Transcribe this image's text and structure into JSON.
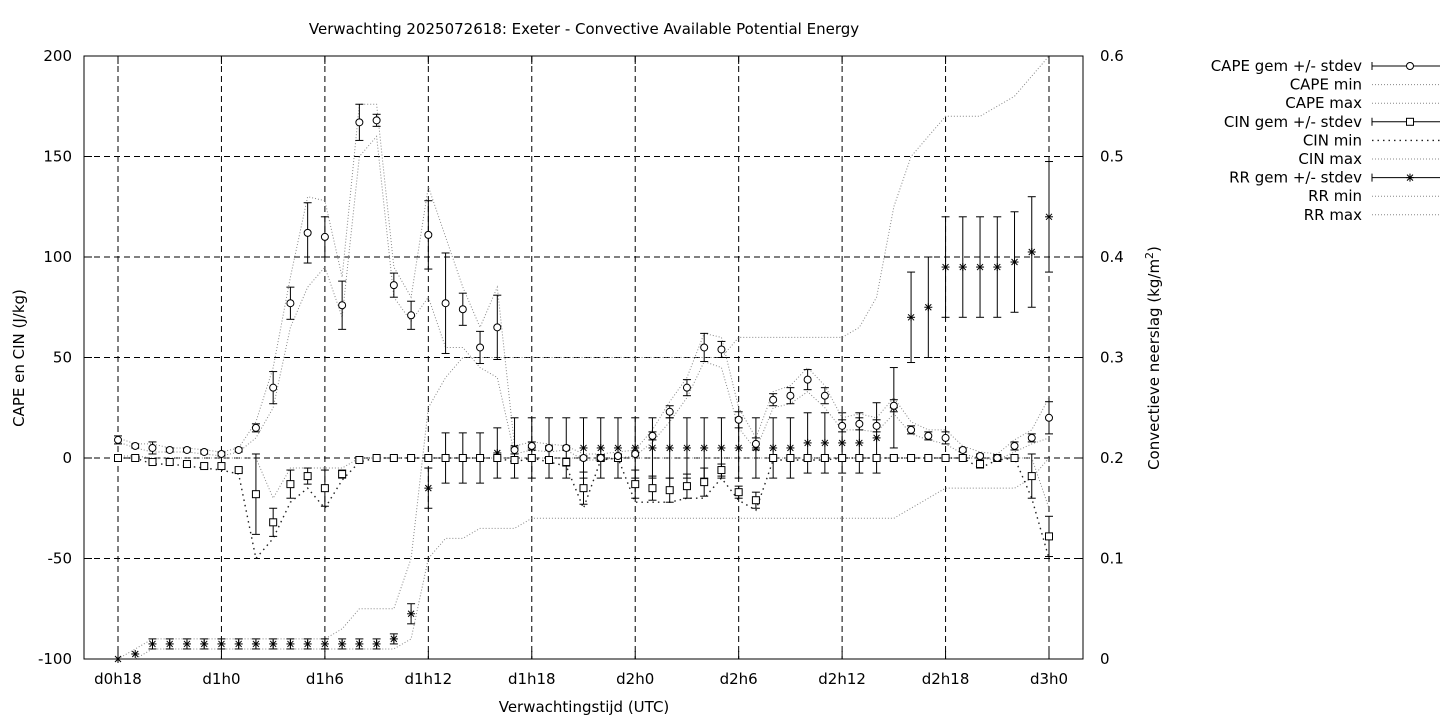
{
  "chart_data": {
    "type": "line",
    "title": "Verwachting 2025072618: Exeter - Convective Available Potential Energy",
    "xlabel": "Verwachtingstijd (UTC)",
    "ylabel": "CAPE en CIN (J/kg)",
    "y2label": "Convectieve neerslag (kg/m²)",
    "y2label_main": "Convectieve neerslag (kg/m",
    "y2label_sup": "2",
    "y2label_close": ")",
    "xlim": [
      0,
      54
    ],
    "ylim": [
      -100,
      200
    ],
    "y2lim": [
      0,
      0.6
    ],
    "grid": true,
    "legend_position": "outside-right",
    "x_ticks": [
      {
        "x": 0,
        "label": "d0h18"
      },
      {
        "x": 6,
        "label": "d1h0"
      },
      {
        "x": 12,
        "label": "d1h6"
      },
      {
        "x": 18,
        "label": "d1h12"
      },
      {
        "x": 24,
        "label": "d1h18"
      },
      {
        "x": 30,
        "label": "d2h0"
      },
      {
        "x": 36,
        "label": "d2h6"
      },
      {
        "x": 42,
        "label": "d2h12"
      },
      {
        "x": 48,
        "label": "d2h18"
      },
      {
        "x": 54,
        "label": "d3h0"
      }
    ],
    "y_ticks": [
      -100,
      -50,
      0,
      50,
      100,
      150,
      200
    ],
    "y2_ticks": [
      "0",
      "0.1",
      "0.2",
      "0.3",
      "0.4",
      "0.5",
      "0.6"
    ],
    "legend": [
      "CAPE gem +/- stdev",
      "CAPE min",
      "CAPE max",
      "CIN gem +/- stdev",
      "CIN min",
      "CIN max",
      "RR gem +/- stdev",
      "RR min",
      "RR max"
    ],
    "x": [
      0,
      1,
      2,
      3,
      4,
      5,
      6,
      7,
      8,
      9,
      10,
      11,
      12,
      13,
      14,
      15,
      16,
      17,
      18,
      19,
      20,
      21,
      22,
      23,
      24,
      25,
      26,
      27,
      28,
      29,
      30,
      31,
      32,
      33,
      34,
      35,
      36,
      37,
      38,
      39,
      40,
      41,
      42,
      43,
      44,
      45,
      46,
      47,
      48,
      49,
      50,
      51,
      52,
      53,
      54
    ],
    "cape": {
      "mean": [
        9,
        6,
        5,
        4,
        4,
        3,
        2,
        4,
        15,
        35,
        77,
        112,
        110,
        76,
        167,
        168,
        86,
        71,
        111,
        77,
        74,
        55,
        65,
        4,
        6,
        5,
        5,
        0,
        0,
        1,
        2,
        11,
        23,
        35,
        55,
        54,
        19,
        7,
        29,
        31,
        39,
        31,
        16,
        17,
        16,
        26,
        14,
        11,
        10,
        4,
        1,
        0,
        6,
        10,
        20
      ],
      "stdev": [
        2,
        1,
        3,
        1,
        1,
        1,
        1,
        1,
        2,
        8,
        8,
        15,
        10,
        12,
        9,
        3,
        6,
        7,
        17,
        25,
        8,
        8,
        16,
        2,
        2,
        1,
        1,
        1,
        1,
        1,
        1,
        2,
        3,
        4,
        7,
        4,
        4,
        3,
        3,
        4,
        5,
        4,
        3,
        3,
        3,
        3,
        2,
        2,
        3,
        1,
        1,
        1,
        2,
        2,
        8
      ],
      "min": [
        8,
        5,
        3,
        3,
        3,
        2,
        1,
        3,
        10,
        25,
        65,
        85,
        95,
        70,
        150,
        160,
        80,
        68,
        80,
        55,
        55,
        45,
        40,
        2,
        4,
        3,
        4,
        -1,
        -1,
        0,
        1,
        8,
        18,
        30,
        48,
        45,
        15,
        4,
        25,
        27,
        33,
        25,
        14,
        14,
        13,
        22,
        12,
        9,
        7,
        2,
        0,
        -1,
        3,
        7,
        10
      ],
      "max": [
        10,
        7,
        7,
        5,
        5,
        4,
        3,
        5,
        18,
        45,
        90,
        130,
        128,
        90,
        176,
        176,
        95,
        80,
        135,
        110,
        85,
        65,
        85,
        6,
        8,
        7,
        6,
        2,
        2,
        3,
        4,
        14,
        28,
        40,
        62,
        60,
        25,
        10,
        33,
        36,
        45,
        36,
        20,
        22,
        20,
        30,
        18,
        14,
        14,
        6,
        3,
        2,
        9,
        14,
        30
      ]
    },
    "cin": {
      "mean": [
        0,
        0,
        -2,
        -2,
        -3,
        -4,
        -4,
        -6,
        -18,
        -32,
        -13,
        -9,
        -15,
        -8,
        -1,
        0,
        0,
        0,
        0,
        0,
        0,
        0,
        0,
        -1,
        0,
        -1,
        -2,
        -15,
        0,
        0,
        -13,
        -15,
        -16,
        -14,
        -12,
        -6,
        -17,
        -21,
        0,
        0,
        0,
        0,
        0,
        0,
        0,
        0,
        0,
        0,
        0,
        0,
        -3,
        0,
        0,
        -9,
        -39
      ],
      "stdev": [
        1,
        1,
        1,
        1,
        1,
        1,
        1,
        1,
        20,
        7,
        7,
        4,
        9,
        2,
        1,
        0.5,
        0.5,
        0.5,
        0.5,
        0.5,
        0.5,
        0.5,
        0.5,
        1,
        1,
        1,
        2,
        8,
        1,
        1,
        7,
        6,
        6,
        6,
        7,
        3,
        3,
        4,
        1,
        1,
        1,
        1,
        1,
        1,
        1,
        1,
        1,
        1,
        1,
        1,
        2,
        1,
        1,
        11,
        10
      ],
      "min": [
        0,
        0,
        -3,
        -3,
        -4,
        -5,
        -6,
        -8,
        -50,
        -40,
        -22,
        -15,
        -25,
        -11,
        -2,
        0,
        0,
        0,
        0,
        0,
        0,
        0,
        0,
        -2,
        0,
        -2,
        -4,
        -25,
        -1,
        0,
        -22,
        -22,
        -22,
        -20,
        -20,
        -10,
        -21,
        -26,
        -1,
        -1,
        -1,
        -1,
        0,
        0,
        0,
        0,
        0,
        0,
        0,
        0,
        -5,
        -1,
        0,
        -20,
        -50
      ],
      "max": [
        1,
        1,
        0,
        0,
        0,
        0,
        0,
        0,
        0,
        -20,
        -5,
        -5,
        -5,
        -5,
        0,
        0,
        0,
        0,
        0,
        0,
        0,
        0,
        0,
        0,
        0,
        0,
        0,
        0,
        0,
        0,
        0,
        0,
        0,
        0,
        0,
        0,
        0,
        0,
        0,
        0,
        0,
        0,
        0,
        0,
        0,
        0,
        0,
        0,
        0,
        0,
        0,
        0,
        0,
        0,
        -25
      ]
    },
    "rr": {
      "mean": [
        0,
        0.005,
        0.015,
        0.015,
        0.015,
        0.015,
        0.015,
        0.015,
        0.015,
        0.015,
        0.015,
        0.015,
        0.015,
        0.015,
        0.015,
        0.015,
        0.02,
        0.045,
        0.17,
        0.2,
        0.2,
        0.2,
        0.205,
        0.21,
        0.21,
        0.21,
        0.21,
        0.21,
        0.21,
        0.21,
        0.21,
        0.21,
        0.21,
        0.21,
        0.21,
        0.21,
        0.21,
        0.21,
        0.21,
        0.21,
        0.215,
        0.215,
        0.215,
        0.215,
        0.22,
        0.25,
        0.34,
        0.35,
        0.39,
        0.39,
        0.39,
        0.39,
        0.395,
        0.405,
        0.44
      ],
      "stdev": [
        0,
        0,
        0.005,
        0.005,
        0.005,
        0.005,
        0.005,
        0.005,
        0.005,
        0.005,
        0.005,
        0.005,
        0.005,
        0.005,
        0.005,
        0.005,
        0.005,
        0.01,
        0.02,
        0.025,
        0.025,
        0.025,
        0.025,
        0.03,
        0.03,
        0.03,
        0.03,
        0.03,
        0.03,
        0.03,
        0.03,
        0.03,
        0.03,
        0.03,
        0.03,
        0.03,
        0.03,
        0.03,
        0.03,
        0.03,
        0.03,
        0.03,
        0.03,
        0.03,
        0.035,
        0.04,
        0.045,
        0.05,
        0.05,
        0.05,
        0.05,
        0.05,
        0.05,
        0.055,
        0.055
      ],
      "min": [
        0,
        0,
        0.01,
        0.01,
        0.01,
        0.01,
        0.01,
        0.01,
        0.01,
        0.01,
        0.01,
        0.01,
        0.01,
        0.01,
        0.01,
        0.01,
        0.01,
        0.02,
        0.1,
        0.12,
        0.12,
        0.13,
        0.13,
        0.13,
        0.14,
        0.14,
        0.14,
        0.14,
        0.14,
        0.14,
        0.14,
        0.14,
        0.14,
        0.14,
        0.14,
        0.14,
        0.14,
        0.14,
        0.14,
        0.14,
        0.14,
        0.14,
        0.14,
        0.14,
        0.14,
        0.14,
        0.15,
        0.16,
        0.17,
        0.17,
        0.17,
        0.17,
        0.17,
        0.18,
        0.2
      ],
      "max": [
        0,
        0.01,
        0.02,
        0.02,
        0.02,
        0.02,
        0.02,
        0.02,
        0.02,
        0.02,
        0.02,
        0.02,
        0.02,
        0.03,
        0.05,
        0.05,
        0.05,
        0.1,
        0.25,
        0.28,
        0.3,
        0.3,
        0.3,
        0.3,
        0.3,
        0.3,
        0.3,
        0.3,
        0.3,
        0.3,
        0.3,
        0.3,
        0.3,
        0.3,
        0.3,
        0.3,
        0.32,
        0.32,
        0.32,
        0.32,
        0.32,
        0.32,
        0.32,
        0.33,
        0.36,
        0.45,
        0.5,
        0.52,
        0.54,
        0.54,
        0.54,
        0.55,
        0.56,
        0.58,
        0.6
      ]
    }
  }
}
